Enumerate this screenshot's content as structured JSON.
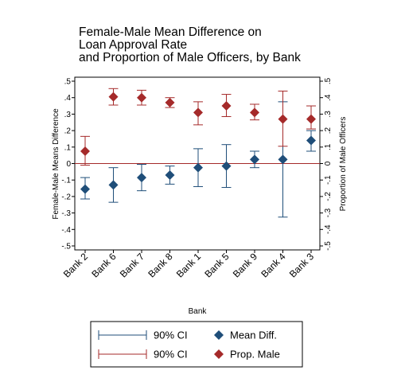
{
  "chart_data": {
    "type": "scatter",
    "title": [
      "Female-Male Mean Difference on",
      "Loan Approval Rate",
      "and Proportion of Male Officers, by Bank"
    ],
    "xlabel": "Bank",
    "ylabel_left": "Female-Male Means Difference",
    "ylabel_right": "Proportion of Male Officers",
    "ylim": [
      -0.5,
      0.5
    ],
    "yticks": [
      0.5,
      0.4,
      0.3,
      0.2,
      0.1,
      0,
      -0.1,
      -0.2,
      -0.3,
      -0.4,
      -0.5
    ],
    "ytick_labels": [
      ".5",
      ".4",
      ".3",
      ".2",
      ".1",
      "0",
      "-.1",
      "-.2",
      "-.3",
      "-.4",
      "-.5"
    ],
    "grid": false,
    "reference_line": 0,
    "categories": [
      "Bank 2",
      "Bank 6",
      "Bank 7",
      "Bank 8",
      "Bank 1",
      "Bank 5",
      "Bank 9",
      "Bank 4",
      "Bank 3"
    ],
    "series": [
      {
        "name": "Mean Diff.",
        "ci_label": "90% CI",
        "color": "#1f4e79",
        "marker": "diamond",
        "values": [
          -0.155,
          -0.13,
          -0.085,
          -0.07,
          -0.025,
          -0.015,
          0.025,
          0.025,
          0.14
        ],
        "ci_low": [
          -0.215,
          -0.235,
          -0.165,
          -0.125,
          -0.14,
          -0.145,
          -0.025,
          -0.325,
          0.075
        ],
        "ci_high": [
          -0.085,
          -0.025,
          -0.005,
          -0.015,
          0.09,
          0.115,
          0.075,
          0.375,
          0.2
        ]
      },
      {
        "name": "Prop. Male",
        "ci_label": "90% CI",
        "color": "#a52a2a",
        "marker": "diamond",
        "values": [
          0.075,
          0.405,
          0.4,
          0.37,
          0.31,
          0.35,
          0.31,
          0.27,
          0.27
        ],
        "ci_low": [
          -0.01,
          0.355,
          0.355,
          0.34,
          0.235,
          0.285,
          0.265,
          0.105,
          0.21
        ],
        "ci_high": [
          0.165,
          0.455,
          0.445,
          0.4,
          0.375,
          0.42,
          0.36,
          0.44,
          0.35
        ]
      }
    ],
    "legend": {
      "placement": "bottom",
      "items": [
        {
          "label": "90% CI",
          "kind": "ci",
          "series": 0
        },
        {
          "label": "Mean Diff.",
          "kind": "marker",
          "series": 0
        },
        {
          "label": "90% CI",
          "kind": "ci",
          "series": 1
        },
        {
          "label": "Prop. Male",
          "kind": "marker",
          "series": 1
        }
      ]
    }
  }
}
